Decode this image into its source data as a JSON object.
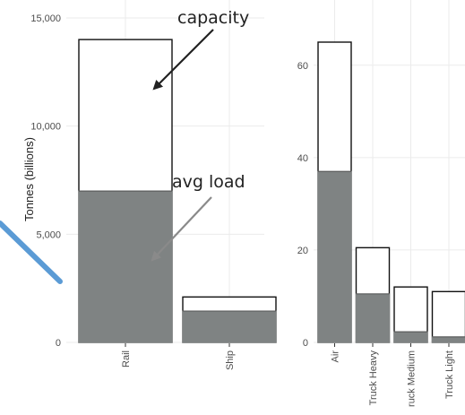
{
  "chart_data": [
    {
      "type": "bar",
      "stacked": "overlay",
      "categories": [
        "Rail",
        "Ship"
      ],
      "series": [
        {
          "values": [
            14000,
            2100
          ]
        },
        {
          "values": [
            7000,
            1450
          ]
        }
      ],
      "ylabel": "Tonnes (billions)",
      "ylim": [
        0,
        15000
      ],
      "yticks": [
        "0",
        "5,000",
        "10,000",
        "15,000"
      ],
      "grid": true
    },
    {
      "type": "bar",
      "stacked": "overlay",
      "categories": [
        "Air",
        "Truck Heavy",
        "ruck Medium",
        "Truck Light"
      ],
      "series": [
        {
          "values": [
            65,
            20.5,
            12,
            11
          ]
        },
        {
          "values": [
            37,
            10.5,
            2.3,
            1.2
          ]
        }
      ],
      "ylim": [
        0,
        65
      ],
      "yticks": [
        "0",
        "20",
        "40",
        "60"
      ],
      "grid": true
    }
  ],
  "annotations": {
    "capacity": "capacity",
    "avg_load": "avg load"
  },
  "colors": {
    "capacity_fill": "#ffffff",
    "load_fill": "#7f8383",
    "bar_stroke": "#111111",
    "grid": "#ebebeb",
    "arrow": "#222222",
    "arrow_gray": "#8a8a8a",
    "accent_line": "#5b9bd5"
  }
}
